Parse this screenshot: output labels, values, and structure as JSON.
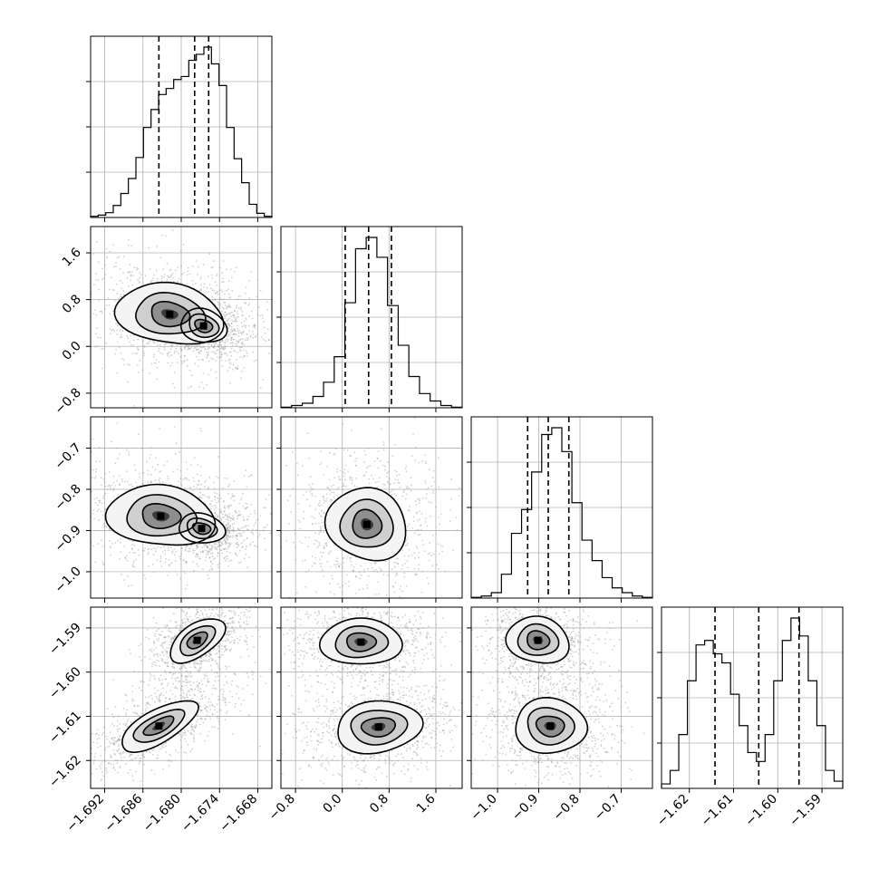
{
  "chart_data": {
    "type": "corner",
    "parameters": [
      {
        "ticks": [
          -1.692,
          -1.686,
          -1.68,
          -1.674,
          -1.668
        ],
        "tick_labels": [
          "−1.692",
          "−1.686",
          "−1.680",
          "−1.674",
          "−1.668"
        ],
        "range": [
          -1.6942,
          -1.6658
        ]
      },
      {
        "ticks": [
          -0.8,
          0.0,
          0.8,
          1.6
        ],
        "tick_labels": [
          "−0.8",
          "0.0",
          "0.8",
          "1.6"
        ],
        "range": [
          -1.05,
          2.05
        ]
      },
      {
        "ticks": [
          -1.0,
          -0.9,
          -0.8,
          -0.7
        ],
        "tick_labels": [
          "−1.0",
          "−0.9",
          "−0.8",
          "−0.7"
        ],
        "range": [
          -1.064,
          -0.624
        ]
      },
      {
        "ticks": [
          -1.62,
          -1.61,
          -1.6,
          -1.59
        ],
        "tick_labels": [
          "−1.62",
          "−1.61",
          "−1.60",
          "−1.59"
        ],
        "range": [
          -1.6263,
          -1.5853
        ]
      }
    ],
    "histograms": [
      {
        "quantiles": [
          -1.6835,
          -1.6779,
          -1.6757
        ],
        "counts": [
          2,
          4,
          8,
          20,
          40,
          65,
          100,
          150,
          180,
          205,
          215,
          230,
          235,
          262,
          272,
          284,
          256,
          220,
          150,
          98,
          58,
          22,
          7,
          2
        ]
      },
      {
        "quantiles": [
          0.05,
          0.45,
          0.84
        ],
        "counts": [
          1,
          4,
          8,
          20,
          45,
          90,
          185,
          280,
          300,
          265,
          180,
          110,
          55,
          25,
          12,
          4,
          1
        ]
      },
      {
        "quantiles": [
          -0.927,
          -0.877,
          -0.827
        ],
        "counts": [
          1,
          3,
          8,
          35,
          95,
          130,
          185,
          240,
          250,
          215,
          140,
          85,
          55,
          30,
          15,
          8,
          3,
          1
        ]
      },
      {
        "quantiles": [
          -1.6142,
          -1.6043,
          -1.5952
        ],
        "counts": [
          5,
          20,
          60,
          120,
          160,
          165,
          150,
          140,
          105,
          70,
          40,
          30,
          60,
          120,
          165,
          190,
          170,
          120,
          70,
          20,
          8
        ]
      }
    ],
    "density_centers": [
      {
        "i": 1,
        "j": 0,
        "peaks": [
          [
            -1.6818,
            0.55
          ],
          [
            -1.6765,
            0.35
          ]
        ]
      },
      {
        "i": 2,
        "j": 0,
        "peaks": [
          [
            -1.6832,
            -0.865
          ],
          [
            -1.6768,
            -0.895
          ]
        ]
      },
      {
        "i": 2,
        "j": 1,
        "peaks": [
          [
            0.42,
            -0.885
          ]
        ]
      },
      {
        "i": 3,
        "j": 0,
        "peaks": [
          [
            -1.6775,
            -1.5928
          ],
          [
            -1.6835,
            -1.6122
          ]
        ]
      },
      {
        "i": 3,
        "j": 1,
        "peaks": [
          [
            0.32,
            -1.5932
          ],
          [
            0.62,
            -1.6124
          ]
        ]
      },
      {
        "i": 3,
        "j": 2,
        "peaks": [
          [
            -0.902,
            -1.5928
          ],
          [
            -0.872,
            -1.6122
          ]
        ]
      }
    ],
    "grid": true,
    "contour_levels": 3,
    "quantile_style": "dashed"
  }
}
